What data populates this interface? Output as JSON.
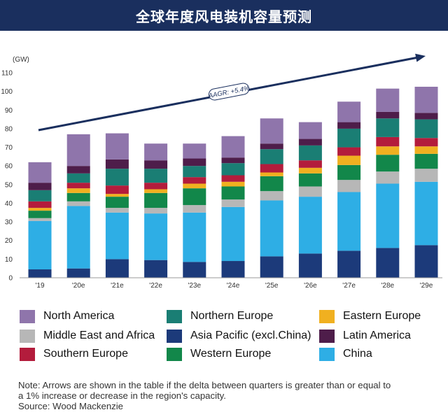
{
  "header": {
    "title": "全球年度风电装机容量预测"
  },
  "chart_data": {
    "type": "bar",
    "stacked": true,
    "unit_label": "(GW)",
    "categories": [
      "'19",
      "'20e",
      "'21e",
      "'22e",
      "'23e",
      "'24e",
      "'25e",
      "'26e",
      "'27e",
      "'28e",
      "'29e"
    ],
    "ylim": [
      0,
      110
    ],
    "yticks": [
      0,
      10,
      20,
      30,
      40,
      50,
      60,
      70,
      80,
      90,
      100,
      110
    ],
    "grid": false,
    "legend_position": "bottom",
    "series": [
      {
        "name": "Asia Pacific (excl.China)",
        "color": "#1c3a7a",
        "values": [
          4.5,
          5,
          10,
          9.5,
          8.5,
          9,
          11.5,
          13,
          14.5,
          16,
          17.5
        ]
      },
      {
        "name": "China",
        "color": "#2eaee5",
        "values": [
          26,
          33.5,
          25,
          25,
          26.5,
          29,
          30,
          30.5,
          31.5,
          34.5,
          34
        ]
      },
      {
        "name": "Middle East and Africa",
        "color": "#b7b7b7",
        "values": [
          1.5,
          2.5,
          2.5,
          3,
          4,
          4,
          5,
          5.5,
          6.5,
          6.5,
          7
        ]
      },
      {
        "name": "Western Europe",
        "color": "#12874a",
        "values": [
          4,
          4.5,
          6,
          8,
          9,
          7,
          8,
          7,
          8,
          9,
          8
        ]
      },
      {
        "name": "Eastern Europe",
        "color": "#f0b020",
        "values": [
          1.5,
          2.5,
          1.5,
          2,
          2.5,
          2.5,
          2,
          3,
          5,
          4.5,
          4
        ]
      },
      {
        "name": "Southern Europe",
        "color": "#b31c3c",
        "values": [
          3.5,
          3,
          4.5,
          3.5,
          3.5,
          3.5,
          4.5,
          4,
          4.5,
          5,
          4.5
        ]
      },
      {
        "name": "Northern Europe",
        "color": "#1a7e74",
        "values": [
          6,
          5,
          9,
          7.5,
          6,
          6.5,
          8,
          8,
          10,
          10,
          10
        ]
      },
      {
        "name": "Latin America",
        "color": "#4e1d4a",
        "values": [
          4,
          4,
          5,
          4.5,
          4,
          3,
          3,
          3.5,
          3.5,
          3.5,
          3.5
        ]
      },
      {
        "name": "North America",
        "color": "#8f75ab",
        "values": [
          11,
          17,
          14,
          9,
          8,
          11.5,
          13.5,
          9,
          11,
          12.5,
          14
        ]
      }
    ],
    "annotations": [
      {
        "text": "AAGR: +5.4%",
        "type": "trend-arrow",
        "from_category": "'19",
        "to_category": "'29e"
      }
    ]
  },
  "legend": {
    "items": [
      {
        "label": "North America",
        "color": "#8f75ab"
      },
      {
        "label": "Northern Europe",
        "color": "#1a7e74"
      },
      {
        "label": "Eastern Europe",
        "color": "#f0b020"
      },
      {
        "label": "Middle East and Africa",
        "color": "#b7b7b7"
      },
      {
        "label": "Asia Pacific (excl.China)",
        "color": "#1c3a7a"
      },
      {
        "label": "Latin America",
        "color": "#4e1d4a"
      },
      {
        "label": "Southern Europe",
        "color": "#b31c3c"
      },
      {
        "label": "Western Europe",
        "color": "#12874a"
      },
      {
        "label": "China",
        "color": "#2eaee5"
      }
    ]
  },
  "note": {
    "line1": "Note: Arrows are shown in the table if the delta between quarters is greater than or equal to",
    "line2": "a 1% increase or decrease in the region's capacity.",
    "source": "Source: Wood Mackenzie"
  }
}
